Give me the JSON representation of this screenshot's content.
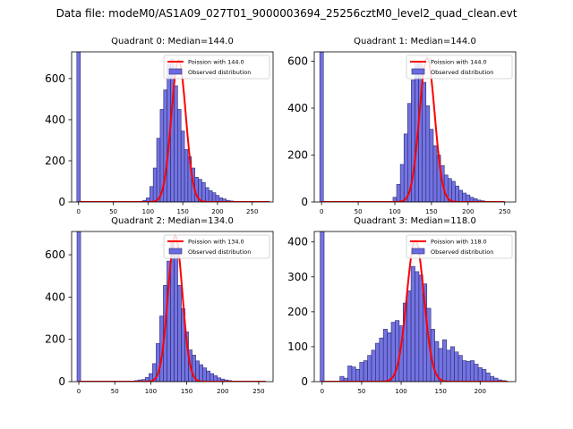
{
  "figure": {
    "suptitle": "Data file: modeM0/AS1A09_027T01_9000003694_25256cztM0_level2_quad_clean.evt"
  },
  "chart_data": [
    {
      "type": "bar",
      "title": "Quadrant 0: Median=144.0",
      "xlim": [
        -10,
        280
      ],
      "ylim": [
        0,
        730
      ],
      "xticks": [
        0,
        50,
        100,
        150,
        200,
        250
      ],
      "yticks": [
        0,
        200,
        400,
        600
      ],
      "bin_width": 5,
      "bins": [
        {
          "x": 0,
          "y": 730
        },
        {
          "x": 95,
          "y": 8
        },
        {
          "x": 100,
          "y": 20
        },
        {
          "x": 105,
          "y": 75
        },
        {
          "x": 110,
          "y": 165
        },
        {
          "x": 115,
          "y": 310
        },
        {
          "x": 120,
          "y": 450
        },
        {
          "x": 125,
          "y": 545
        },
        {
          "x": 130,
          "y": 670
        },
        {
          "x": 135,
          "y": 695
        },
        {
          "x": 140,
          "y": 565
        },
        {
          "x": 145,
          "y": 450
        },
        {
          "x": 150,
          "y": 345
        },
        {
          "x": 155,
          "y": 255
        },
        {
          "x": 160,
          "y": 220
        },
        {
          "x": 165,
          "y": 165
        },
        {
          "x": 170,
          "y": 120
        },
        {
          "x": 175,
          "y": 110
        },
        {
          "x": 180,
          "y": 95
        },
        {
          "x": 185,
          "y": 70
        },
        {
          "x": 190,
          "y": 55
        },
        {
          "x": 195,
          "y": 45
        },
        {
          "x": 200,
          "y": 32
        },
        {
          "x": 205,
          "y": 20
        },
        {
          "x": 210,
          "y": 15
        },
        {
          "x": 215,
          "y": 8
        },
        {
          "x": 220,
          "y": 5
        }
      ],
      "poisson": {
        "mean": 144.0,
        "peak": 690,
        "sigma": 10.5,
        "x_range": [
          0,
          275
        ]
      },
      "legend": {
        "position": "top-right",
        "entries": [
          "Poission with 144.0",
          "Observed distribution"
        ]
      }
    },
    {
      "type": "bar",
      "title": "Quadrant 1: Median=144.0",
      "xlim": [
        -10,
        265
      ],
      "ylim": [
        0,
        640
      ],
      "xticks": [
        0,
        50,
        100,
        150,
        200,
        250
      ],
      "yticks": [
        0,
        200,
        400,
        600
      ],
      "bin_width": 5,
      "bins": [
        {
          "x": 0,
          "y": 640
        },
        {
          "x": 100,
          "y": 20
        },
        {
          "x": 105,
          "y": 75
        },
        {
          "x": 110,
          "y": 160
        },
        {
          "x": 115,
          "y": 290
        },
        {
          "x": 120,
          "y": 420
        },
        {
          "x": 125,
          "y": 520
        },
        {
          "x": 130,
          "y": 600
        },
        {
          "x": 135,
          "y": 595
        },
        {
          "x": 140,
          "y": 510
        },
        {
          "x": 145,
          "y": 410
        },
        {
          "x": 150,
          "y": 310
        },
        {
          "x": 155,
          "y": 240
        },
        {
          "x": 160,
          "y": 200
        },
        {
          "x": 165,
          "y": 155
        },
        {
          "x": 170,
          "y": 115
        },
        {
          "x": 175,
          "y": 100
        },
        {
          "x": 180,
          "y": 88
        },
        {
          "x": 185,
          "y": 68
        },
        {
          "x": 190,
          "y": 50
        },
        {
          "x": 195,
          "y": 38
        },
        {
          "x": 200,
          "y": 30
        },
        {
          "x": 205,
          "y": 20
        },
        {
          "x": 210,
          "y": 14
        },
        {
          "x": 215,
          "y": 8
        },
        {
          "x": 220,
          "y": 5
        }
      ],
      "poisson": {
        "mean": 144.0,
        "peak": 615,
        "sigma": 10.5,
        "x_range": [
          0,
          250
        ]
      },
      "legend": {
        "position": "top-right",
        "entries": [
          "Poission with 144.0",
          "Observed distribution"
        ]
      }
    },
    {
      "type": "bar",
      "title": "Quadrant 2: Median=134.0",
      "xlim": [
        -10,
        270
      ],
      "ylim": [
        0,
        710
      ],
      "xticks": [
        0,
        50,
        100,
        150,
        200,
        250
      ],
      "yticks": [
        0,
        200,
        400,
        600
      ],
      "bin_width": 5,
      "bins": [
        {
          "x": 0,
          "y": 710
        },
        {
          "x": 70,
          "y": 3
        },
        {
          "x": 80,
          "y": 5
        },
        {
          "x": 85,
          "y": 8
        },
        {
          "x": 90,
          "y": 10
        },
        {
          "x": 95,
          "y": 20
        },
        {
          "x": 100,
          "y": 38
        },
        {
          "x": 105,
          "y": 85
        },
        {
          "x": 110,
          "y": 180
        },
        {
          "x": 115,
          "y": 310
        },
        {
          "x": 120,
          "y": 455
        },
        {
          "x": 125,
          "y": 570
        },
        {
          "x": 130,
          "y": 665
        },
        {
          "x": 135,
          "y": 615
        },
        {
          "x": 140,
          "y": 455
        },
        {
          "x": 145,
          "y": 345
        },
        {
          "x": 150,
          "y": 235
        },
        {
          "x": 155,
          "y": 150
        },
        {
          "x": 160,
          "y": 125
        },
        {
          "x": 165,
          "y": 98
        },
        {
          "x": 170,
          "y": 80
        },
        {
          "x": 175,
          "y": 65
        },
        {
          "x": 180,
          "y": 50
        },
        {
          "x": 185,
          "y": 38
        },
        {
          "x": 190,
          "y": 28
        },
        {
          "x": 195,
          "y": 18
        },
        {
          "x": 200,
          "y": 12
        },
        {
          "x": 205,
          "y": 8
        },
        {
          "x": 210,
          "y": 5
        },
        {
          "x": 215,
          "y": 3
        }
      ],
      "poisson": {
        "mean": 134.0,
        "peak": 690,
        "sigma": 10.0,
        "x_range": [
          0,
          260
        ]
      },
      "legend": {
        "position": "top-right",
        "entries": [
          "Poission with 134.0",
          "Observed distribution"
        ]
      }
    },
    {
      "type": "bar",
      "title": "Quadrant 3: Median=118.0",
      "xlim": [
        -10,
        245
      ],
      "ylim": [
        0,
        430
      ],
      "xticks": [
        0,
        50,
        100,
        150,
        200
      ],
      "yticks": [
        0,
        100,
        200,
        300,
        400
      ],
      "bin_width": 5,
      "bins": [
        {
          "x": 0,
          "y": 430
        },
        {
          "x": 25,
          "y": 15
        },
        {
          "x": 30,
          "y": 10
        },
        {
          "x": 35,
          "y": 45
        },
        {
          "x": 40,
          "y": 42
        },
        {
          "x": 45,
          "y": 35
        },
        {
          "x": 50,
          "y": 55
        },
        {
          "x": 55,
          "y": 60
        },
        {
          "x": 60,
          "y": 75
        },
        {
          "x": 65,
          "y": 90
        },
        {
          "x": 70,
          "y": 110
        },
        {
          "x": 75,
          "y": 125
        },
        {
          "x": 80,
          "y": 150
        },
        {
          "x": 85,
          "y": 140
        },
        {
          "x": 90,
          "y": 170
        },
        {
          "x": 95,
          "y": 175
        },
        {
          "x": 100,
          "y": 160
        },
        {
          "x": 105,
          "y": 225
        },
        {
          "x": 110,
          "y": 260
        },
        {
          "x": 115,
          "y": 330
        },
        {
          "x": 120,
          "y": 315
        },
        {
          "x": 125,
          "y": 305
        },
        {
          "x": 130,
          "y": 280
        },
        {
          "x": 135,
          "y": 210
        },
        {
          "x": 140,
          "y": 150
        },
        {
          "x": 145,
          "y": 115
        },
        {
          "x": 150,
          "y": 95
        },
        {
          "x": 155,
          "y": 120
        },
        {
          "x": 160,
          "y": 90
        },
        {
          "x": 165,
          "y": 100
        },
        {
          "x": 170,
          "y": 85
        },
        {
          "x": 175,
          "y": 75
        },
        {
          "x": 180,
          "y": 60
        },
        {
          "x": 185,
          "y": 58
        },
        {
          "x": 190,
          "y": 60
        },
        {
          "x": 195,
          "y": 50
        },
        {
          "x": 200,
          "y": 40
        },
        {
          "x": 205,
          "y": 35
        },
        {
          "x": 210,
          "y": 25
        },
        {
          "x": 215,
          "y": 15
        },
        {
          "x": 220,
          "y": 10
        },
        {
          "x": 225,
          "y": 5
        },
        {
          "x": 230,
          "y": 3
        }
      ],
      "poisson": {
        "mean": 118.0,
        "peak": 405,
        "sigma": 10.9,
        "x_range": [
          0,
          235
        ]
      },
      "legend": {
        "position": "top-right",
        "entries": [
          "Poission with 118.0",
          "Observed distribution"
        ]
      }
    }
  ],
  "colors": {
    "bar_fill": "#6b6be0",
    "bar_edge": "#2a2a6e",
    "curve": "#ff0000",
    "axis": "#000000"
  }
}
